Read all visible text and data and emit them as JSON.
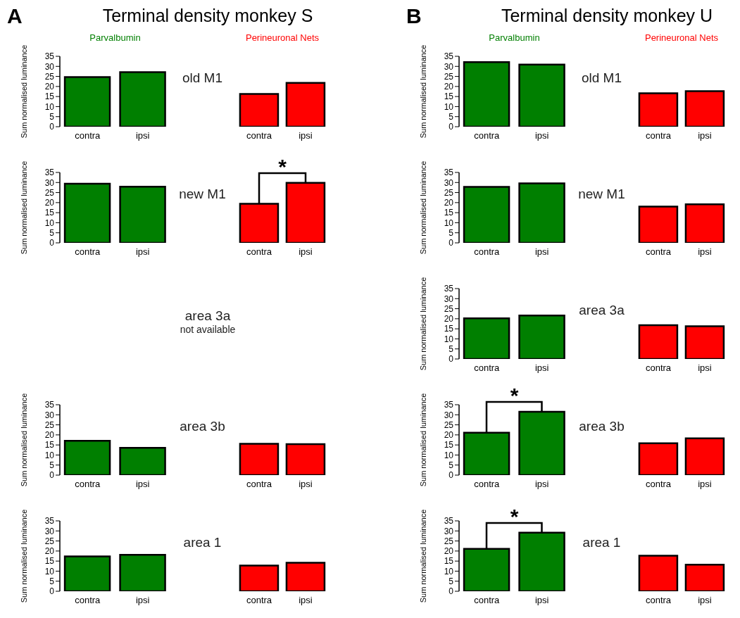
{
  "chart_data": [
    {
      "type": "other",
      "title": "Terminal density monkey S",
      "annotations": [
        "A"
      ]
    },
    {
      "type": "bar",
      "title": "Parvalbumin",
      "categories": [
        "contra",
        "ipsi"
      ],
      "values": [
        24.7,
        27.1
      ],
      "color": "#007f00",
      "ylim": [
        0,
        35
      ],
      "yticks": [
        0,
        5,
        10,
        15,
        20,
        25,
        30,
        35
      ],
      "ylabel": "Sum normalised luminance"
    },
    {
      "type": "bar",
      "title": "Perineuronal Nets",
      "categories": [
        "contra",
        "ipsi"
      ],
      "values": [
        16.3,
        21.8
      ],
      "color": "#ff0000",
      "ylim": [
        0,
        35
      ],
      "yticks": [
        0,
        5,
        10,
        15,
        20,
        25,
        30,
        35
      ],
      "tick_labels": "x",
      "annotations": [
        "old M1"
      ]
    },
    {
      "type": "bar",
      "categories": [
        "contra",
        "ipsi"
      ],
      "values": [
        29.4,
        27.9
      ],
      "color": "#007f00",
      "ylim": [
        0,
        35
      ],
      "yticks": [
        0,
        5,
        10,
        15,
        20,
        25,
        30,
        35
      ],
      "ylabel": "Sum normalised luminance"
    },
    {
      "type": "bar",
      "categories": [
        "contra",
        "ipsi"
      ],
      "values": [
        19.4,
        29.8
      ],
      "color": "#ff0000",
      "ylim": [
        0,
        35
      ],
      "yticks": [
        0,
        5,
        10,
        15,
        20,
        25,
        30,
        35
      ],
      "tick_labels": "x",
      "annotations": [
        "new M1",
        "*"
      ]
    },
    {
      "type": "other",
      "annotations": [
        "area 3a",
        "not available"
      ]
    },
    {
      "type": "bar",
      "categories": [
        "contra",
        "ipsi"
      ],
      "values": [
        17.1,
        13.6
      ],
      "color": "#007f00",
      "ylim": [
        0,
        35
      ],
      "yticks": [
        0,
        5,
        10,
        15,
        20,
        25,
        30,
        35
      ],
      "ylabel": "Sum normalised luminance"
    },
    {
      "type": "bar",
      "categories": [
        "contra",
        "ipsi"
      ],
      "values": [
        15.6,
        15.4
      ],
      "color": "#ff0000",
      "ylim": [
        0,
        35
      ],
      "yticks": [
        0,
        5,
        10,
        15,
        20,
        25,
        30,
        35
      ],
      "tick_labels": "x",
      "annotations": [
        "area 3b"
      ]
    },
    {
      "type": "bar",
      "categories": [
        "contra",
        "ipsi"
      ],
      "values": [
        17.3,
        18.1
      ],
      "color": "#007f00",
      "ylim": [
        0,
        35
      ],
      "yticks": [
        0,
        5,
        10,
        15,
        20,
        25,
        30,
        35
      ],
      "ylabel": "Sum normalised luminance"
    },
    {
      "type": "bar",
      "categories": [
        "contra",
        "ipsi"
      ],
      "values": [
        12.8,
        14.2
      ],
      "color": "#ff0000",
      "ylim": [
        0,
        35
      ],
      "yticks": [
        0,
        5,
        10,
        15,
        20,
        25,
        30,
        35
      ],
      "tick_labels": "x",
      "annotations": [
        "area 1"
      ]
    },
    {
      "type": "other",
      "title": "Terminal density monkey U",
      "annotations": [
        "B"
      ]
    },
    {
      "type": "bar",
      "title": "Parvalbumin",
      "categories": [
        "contra",
        "ipsi"
      ],
      "values": [
        32.1,
        30.9
      ],
      "color": "#007f00",
      "ylim": [
        0,
        35
      ],
      "yticks": [
        0,
        5,
        10,
        15,
        20,
        25,
        30,
        35
      ],
      "ylabel": "Sum normalised luminance"
    },
    {
      "type": "bar",
      "title": "Perineuronal Nets",
      "categories": [
        "contra",
        "ipsi"
      ],
      "values": [
        16.6,
        17.7
      ],
      "color": "#ff0000",
      "ylim": [
        0,
        35
      ],
      "yticks": [
        0,
        5,
        10,
        15,
        20,
        25,
        30,
        35
      ],
      "tick_labels": "x",
      "annotations": [
        "old M1"
      ]
    },
    {
      "type": "bar",
      "categories": [
        "contra",
        "ipsi"
      ],
      "values": [
        27.8,
        29.6
      ],
      "color": "#007f00",
      "ylim": [
        0,
        35
      ],
      "yticks": [
        0,
        5,
        10,
        15,
        20,
        25,
        30,
        35
      ],
      "ylabel": "Sum normalised luminance"
    },
    {
      "type": "bar",
      "categories": [
        "contra",
        "ipsi"
      ],
      "values": [
        18.0,
        19.2
      ],
      "color": "#ff0000",
      "ylim": [
        0,
        35
      ],
      "yticks": [
        0,
        5,
        10,
        15,
        20,
        25,
        30,
        35
      ],
      "tick_labels": "x",
      "annotations": [
        "new M1"
      ]
    },
    {
      "type": "bar",
      "categories": [
        "contra",
        "ipsi"
      ],
      "values": [
        20.2,
        21.6
      ],
      "color": "#007f00",
      "ylim": [
        0,
        35
      ],
      "yticks": [
        0,
        5,
        10,
        15,
        20,
        25,
        30,
        35
      ],
      "ylabel": "Sum normalised luminance"
    },
    {
      "type": "bar",
      "categories": [
        "contra",
        "ipsi"
      ],
      "values": [
        16.8,
        16.3
      ],
      "color": "#ff0000",
      "ylim": [
        0,
        35
      ],
      "yticks": [
        0,
        5,
        10,
        15,
        20,
        25,
        30,
        35
      ],
      "tick_labels": "x",
      "annotations": [
        "area 3a"
      ]
    },
    {
      "type": "bar",
      "categories": [
        "contra",
        "ipsi"
      ],
      "values": [
        21.1,
        31.5
      ],
      "color": "#007f00",
      "ylim": [
        0,
        35
      ],
      "yticks": [
        0,
        5,
        10,
        15,
        20,
        25,
        30,
        35
      ],
      "ylabel": "Sum normalised luminance",
      "annotations": [
        "*"
      ]
    },
    {
      "type": "bar",
      "categories": [
        "contra",
        "ipsi"
      ],
      "values": [
        15.8,
        18.3
      ],
      "color": "#ff0000",
      "ylim": [
        0,
        35
      ],
      "yticks": [
        0,
        5,
        10,
        15,
        20,
        25,
        30,
        35
      ],
      "tick_labels": "x",
      "annotations": [
        "area 3b"
      ]
    },
    {
      "type": "bar",
      "categories": [
        "contra",
        "ipsi"
      ],
      "values": [
        21.1,
        29.1
      ],
      "color": "#007f00",
      "ylim": [
        0,
        35
      ],
      "yticks": [
        0,
        5,
        10,
        15,
        20,
        25,
        30,
        35
      ],
      "ylabel": "Sum normalised luminance",
      "annotations": [
        "*"
      ]
    },
    {
      "type": "bar",
      "categories": [
        "contra",
        "ipsi"
      ],
      "values": [
        17.7,
        13.2
      ],
      "color": "#ff0000",
      "ylim": [
        0,
        35
      ],
      "yticks": [
        0,
        5,
        10,
        15,
        20,
        25,
        30,
        35
      ],
      "tick_labels": "x",
      "annotations": [
        "area 1"
      ]
    }
  ]
}
